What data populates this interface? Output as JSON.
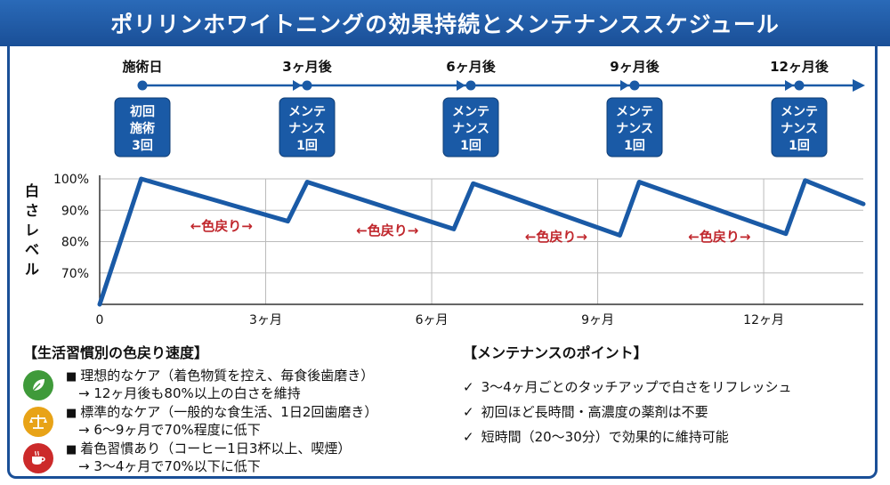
{
  "title": "ポリリンホワイトニングの効果持続とメンテナンススケジュール",
  "timeline": {
    "labels": [
      "施術日",
      "3ヶ月後",
      "6ヶ月後",
      "9ヶ月後",
      "12ヶ月後"
    ],
    "boxes": [
      [
        "初回",
        "施術",
        "3回"
      ],
      [
        "メンテ",
        "ナンス",
        "1回"
      ],
      [
        "メンテ",
        "ナンス",
        "1回"
      ],
      [
        "メンテ",
        "ナンス",
        "1回"
      ],
      [
        "メンテ",
        "ナンス",
        "1回"
      ]
    ]
  },
  "chart_data": {
    "type": "line",
    "ylabel": "白さレベル",
    "xlabel": "",
    "x_unit": "months",
    "xlim": [
      0,
      13.8
    ],
    "ylim": [
      60,
      100
    ],
    "yticks": [
      70,
      80,
      90,
      100
    ],
    "ytick_labels": [
      "70%",
      "80%",
      "90%",
      "100%"
    ],
    "xticks": [
      0,
      3,
      6,
      9,
      12
    ],
    "xtick_labels": [
      "0",
      "3ヶ月",
      "6ヶ月",
      "9ヶ月",
      "12ヶ月"
    ],
    "grid": true,
    "series": [
      {
        "name": "",
        "x": [
          0,
          0.75,
          3.4,
          3.75,
          6.4,
          6.75,
          9.4,
          9.75,
          12.4,
          12.75,
          13.8
        ],
        "y": [
          60,
          100,
          86.5,
          99,
          84,
          98.5,
          82,
          99,
          82.5,
          99.5,
          92
        ]
      }
    ],
    "annotations": [
      {
        "text": "←色戻り→",
        "x": 2.2,
        "y": 85
      },
      {
        "text": "←色戻り→",
        "x": 5.2,
        "y": 83.5
      },
      {
        "text": "←色戻り→",
        "x": 8.25,
        "y": 81.5
      },
      {
        "text": "←色戻り→",
        "x": 11.2,
        "y": 81.5
      }
    ],
    "colors": {
      "line": "#1a5aa6",
      "annotation": "#c0272d",
      "grid": "#bbbbbb"
    }
  },
  "habits": {
    "title": "【生活習慣別の色戻り速度】",
    "items": [
      {
        "icon": "leaf-icon",
        "color": "#3f9a3a",
        "line1": "理想的なケア（着色物質を控え、毎食後歯磨き）",
        "line2": "→ 12ヶ月後も80%以上の白さを維持"
      },
      {
        "icon": "scale-icon",
        "color": "#e8a317",
        "line1": "標準的なケア（一般的な食生活、1日2回歯磨き）",
        "line2": "→ 6〜9ヶ月で70%程度に低下"
      },
      {
        "icon": "coffee-icon",
        "color": "#cc2a2a",
        "line1": "着色習慣あり（コーヒー1日3杯以上、喫煙）",
        "line2": "→ 3〜4ヶ月で70%以下に低下"
      }
    ]
  },
  "points": {
    "title": "【メンテナンスのポイント】",
    "items": [
      "3〜4ヶ月ごとのタッチアップで白さをリフレッシュ",
      "初回ほど長時間・高濃度の薬剤は不要",
      "短時間（20〜30分）で効果的に維持可能"
    ]
  }
}
